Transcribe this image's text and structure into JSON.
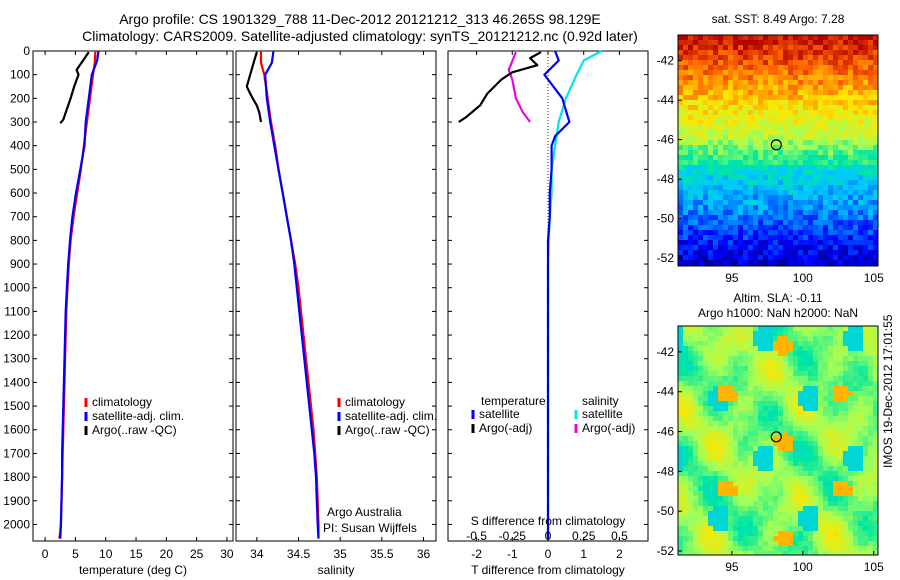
{
  "header": {
    "title_line1": "Argo profile: CS 1901329_788 11-Dec-2012 20121212_313 46.265S 98.129E",
    "title_line2": "Climatology: CARS2009. Satellite-adjusted climatology: synTS_20121212.nc (0.92d later)"
  },
  "colors": {
    "climatology": "#ff0000",
    "satellite": "#0000ff",
    "argo": "#000000",
    "satellite_salinity": "#00e5ee",
    "argo_salinity": "#ee00ee"
  },
  "chart_data": [
    {
      "type": "line",
      "title": "",
      "xlabel": "temperature (deg C)",
      "ylabel": "",
      "xlim": [
        -2,
        31
      ],
      "ylim": [
        2070,
        0
      ],
      "xticks": [
        "0",
        "5",
        "10",
        "15",
        "20",
        "25",
        "30"
      ],
      "yticks": [
        "0",
        "100",
        "200",
        "300",
        "400",
        "500",
        "600",
        "700",
        "800",
        "900",
        "1000",
        "1100",
        "1200",
        "1300",
        "1400",
        "1500",
        "1600",
        "1700",
        "1800",
        "1900",
        "2000"
      ],
      "legend": [
        "climatology",
        "satellite-adj. clim.",
        "Argo(..raw -QC)"
      ],
      "legend_position": "lower-right",
      "series": [
        {
          "name": "climatology",
          "color": "#ff0000",
          "x": [
            8.3,
            8.2,
            7.9,
            7.4,
            6.9,
            6.4,
            5.9,
            5.3,
            4.7,
            4.2,
            3.9,
            3.7,
            3.5,
            3.4,
            3.3,
            3.2,
            3.1,
            3.0,
            2.9,
            2.8,
            2.7,
            2.6,
            2.5,
            2.4,
            2.3
          ],
          "y": [
            0,
            50,
            100,
            200,
            300,
            400,
            500,
            600,
            700,
            800,
            900,
            1000,
            1100,
            1200,
            1300,
            1400,
            1500,
            1600,
            1700,
            1800,
            1900,
            2000,
            2030,
            2050,
            2060
          ]
        },
        {
          "name": "satellite-adj. clim.",
          "color": "#0000ff",
          "x": [
            8.8,
            8.6,
            7.7,
            7.2,
            6.7,
            6.5,
            5.8,
            5.1,
            4.5,
            4.1,
            3.8,
            3.6,
            3.4,
            3.3,
            3.2,
            3.1,
            3.0,
            2.9,
            2.8,
            2.8,
            2.7,
            2.6,
            2.5
          ],
          "y": [
            0,
            40,
            100,
            200,
            300,
            400,
            500,
            600,
            700,
            800,
            900,
            1000,
            1100,
            1200,
            1300,
            1400,
            1500,
            1600,
            1700,
            1800,
            1900,
            2000,
            2060
          ]
        },
        {
          "name": "Argo(..raw -QC)",
          "color": "#000000",
          "x": [
            7.2,
            6.8,
            6.0,
            5.2,
            5.5,
            4.8,
            4.2,
            3.8,
            3.4,
            3.0,
            2.5
          ],
          "y": [
            5,
            20,
            50,
            80,
            100,
            150,
            200,
            230,
            260,
            290,
            305
          ]
        }
      ]
    },
    {
      "type": "line",
      "title": "",
      "xlabel": "salinity",
      "ylabel": "",
      "xlim": [
        33.75,
        36.15
      ],
      "ylim": [
        2070,
        0
      ],
      "xticks": [
        "34",
        "34.5",
        "35",
        "35.5",
        "36"
      ],
      "legend": [
        "climatology",
        "satellite-adj. clim.",
        "Argo(..raw -QC)"
      ],
      "legend_position": "lower-right",
      "annotations": [
        "Argo Australia",
        "PI: Susan Wijffels"
      ],
      "series": [
        {
          "name": "climatology",
          "color": "#ff0000",
          "x": [
            34.05,
            34.05,
            34.09,
            34.13,
            34.17,
            34.22,
            34.26,
            34.31,
            34.36,
            34.41,
            34.46,
            34.5,
            34.53,
            34.56,
            34.59,
            34.62,
            34.65,
            34.68,
            34.7,
            34.72,
            34.73,
            34.74,
            34.74
          ],
          "y": [
            0,
            50,
            100,
            200,
            300,
            400,
            500,
            600,
            700,
            800,
            900,
            1000,
            1100,
            1200,
            1300,
            1400,
            1500,
            1600,
            1700,
            1800,
            1900,
            2000,
            2060
          ]
        },
        {
          "name": "satellite-adj. clim.",
          "color": "#0000ff",
          "x": [
            34.2,
            34.18,
            34.1,
            34.12,
            34.16,
            34.21,
            34.26,
            34.31,
            34.36,
            34.41,
            34.45,
            34.48,
            34.51,
            34.54,
            34.57,
            34.6,
            34.63,
            34.66,
            34.69,
            34.71,
            34.72,
            34.73,
            34.74
          ],
          "y": [
            0,
            50,
            100,
            200,
            300,
            400,
            500,
            600,
            700,
            800,
            900,
            1000,
            1100,
            1200,
            1300,
            1400,
            1500,
            1600,
            1700,
            1800,
            1900,
            2000,
            2060
          ]
        },
        {
          "name": "Argo(..raw -QC)",
          "color": "#000000",
          "x": [
            34.0,
            33.97,
            33.92,
            33.88,
            33.92,
            33.95,
            34.0,
            34.03,
            34.05
          ],
          "y": [
            5,
            40,
            100,
            150,
            180,
            200,
            230,
            260,
            300
          ]
        }
      ]
    },
    {
      "type": "line",
      "title": "",
      "xlabel": "T difference from climatology",
      "x2label": "S difference from climatology",
      "ylabel": "",
      "xlim": [
        -2.8,
        2.8
      ],
      "ylim": [
        2070,
        0
      ],
      "xticks": [
        "-2",
        "-1",
        "0",
        "1",
        "2"
      ],
      "x2ticks": [
        "-0.5",
        "-0.25",
        "0",
        "0.25",
        "0.5"
      ],
      "legend_titles": [
        "temperature",
        "salinity"
      ],
      "legend": [
        "satellite",
        "Argo(-adj)",
        "satellite",
        "Argo(-adj)"
      ],
      "legend_position": "lower-center",
      "series": [
        {
          "name": "satellite",
          "group": "temperature",
          "color": "#0000ff",
          "x": [
            0.2,
            0.3,
            -0.1,
            0.4,
            0.6,
            0.2,
            0.1,
            0.1,
            0.05,
            0.05,
            0,
            0,
            0,
            0,
            0,
            0,
            0,
            0,
            0,
            0,
            0,
            0,
            0,
            0
          ],
          "y": [
            0,
            40,
            100,
            200,
            300,
            360,
            400,
            500,
            600,
            700,
            800,
            900,
            1000,
            1100,
            1200,
            1300,
            1400,
            1500,
            1600,
            1700,
            1800,
            1900,
            2000,
            2060
          ]
        },
        {
          "name": "Argo(-adj)",
          "group": "temperature",
          "color": "#000000",
          "x": [
            -0.2,
            -0.5,
            -0.3,
            -1.0,
            -1.3,
            -1.7,
            -1.9,
            -2.3,
            -2.5
          ],
          "y": [
            5,
            30,
            60,
            90,
            120,
            180,
            230,
            280,
            300
          ]
        },
        {
          "name": "satellite",
          "group": "salinity",
          "color": "#00e5ee",
          "x": [
            1.5,
            1.0,
            0.8,
            0.5,
            0.3,
            0.2,
            0.1,
            0.1,
            0.05,
            0.02,
            0,
            0,
            0,
            0,
            0,
            0,
            0,
            0,
            0,
            0,
            0,
            0,
            0,
            0
          ],
          "y": [
            0,
            40,
            100,
            200,
            300,
            400,
            500,
            600,
            700,
            800,
            900,
            1000,
            1100,
            1200,
            1300,
            1400,
            1500,
            1600,
            1700,
            1800,
            1900,
            2000,
            2030,
            2060
          ]
        },
        {
          "name": "Argo(-adj)",
          "group": "salinity",
          "color": "#ee00ee",
          "x": [
            -0.9,
            -1.1,
            -1.0,
            -0.9,
            -0.7,
            -0.5
          ],
          "y": [
            5,
            80,
            120,
            200,
            260,
            300
          ]
        }
      ]
    },
    {
      "type": "heatmap",
      "title": "sat. SST: 8.49 Argo: 7.28",
      "xticks": [
        "95",
        "100",
        "105"
      ],
      "yticks": [
        "-42",
        "-44",
        "-46",
        "-48",
        "-50",
        "-52"
      ],
      "xlim": [
        91.2,
        105.3
      ],
      "ylim": [
        -52.4,
        -40.7
      ],
      "marker": {
        "lon": 98.129,
        "lat": -46.265
      }
    },
    {
      "type": "heatmap",
      "title": "Altim. SLA: -0.11",
      "subtitle": "Argo h1000: NaN h2000: NaN",
      "xticks": [
        "95",
        "100",
        "105"
      ],
      "yticks": [
        "-42",
        "-44",
        "-46",
        "-48",
        "-50",
        "-52"
      ],
      "xlim": [
        91.2,
        105.3
      ],
      "ylim": [
        -52.2,
        -40.7
      ],
      "marker": {
        "lon": 98.129,
        "lat": -46.265
      }
    }
  ],
  "stamp": "IMOS 19-Dec-2012 17:01:55"
}
